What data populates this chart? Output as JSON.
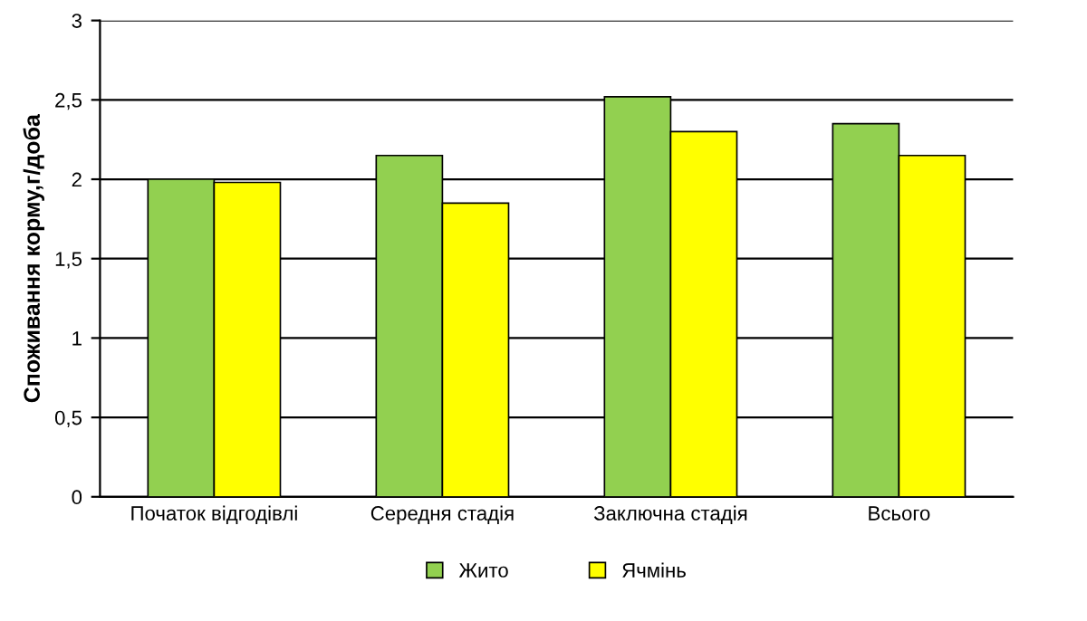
{
  "chart_data": {
    "type": "bar",
    "ylabel": "Споживання корму,г/доба",
    "categories": [
      "Початок відгодівлі",
      "Середня стадія",
      "Заключна стадія",
      "Всього"
    ],
    "series": [
      {
        "name": "Жито",
        "color": "#92d050",
        "values": [
          2.0,
          2.15,
          2.52,
          2.35
        ]
      },
      {
        "name": "Ячмінь",
        "color": "#ffff00",
        "values": [
          1.98,
          1.85,
          2.3,
          2.15
        ]
      }
    ],
    "ylim": [
      0,
      3
    ],
    "yticks": [
      0,
      {
        "value": 0.5,
        "label": "0,5"
      },
      1,
      {
        "value": 1.5,
        "label": "1,5"
      },
      2,
      {
        "value": 2.5,
        "label": "2,5"
      },
      3
    ],
    "grid": "y",
    "legend": "bottom"
  }
}
